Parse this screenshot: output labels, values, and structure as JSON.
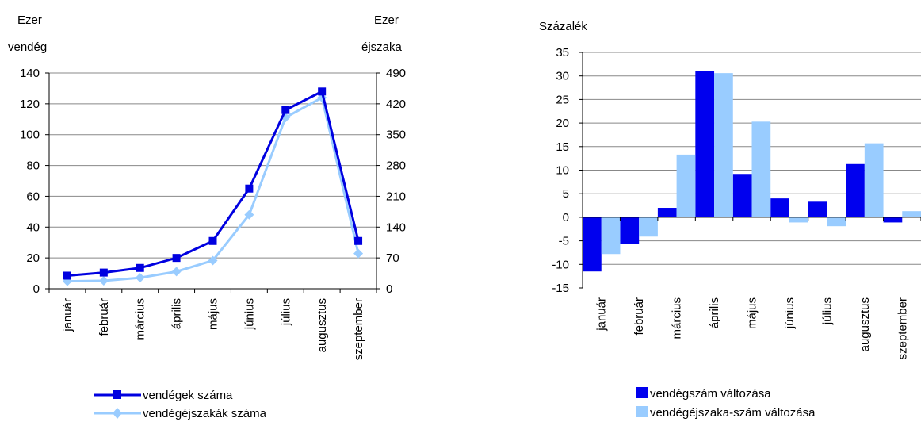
{
  "chart_data": [
    {
      "type": "line",
      "categories": [
        "január",
        "február",
        "március",
        "április",
        "május",
        "június",
        "július",
        "augusztus",
        "szeptember"
      ],
      "left_axis": {
        "label_line1": "Ezer",
        "label_line2": "vendég",
        "ylim": [
          0,
          140
        ],
        "ticks": [
          0,
          20,
          40,
          60,
          80,
          100,
          120,
          140
        ]
      },
      "right_axis": {
        "label_line1": "Ezer",
        "label_line2": "éjszaka",
        "ylim": [
          0,
          490
        ],
        "ticks": [
          0,
          70,
          140,
          210,
          280,
          350,
          420,
          490
        ]
      },
      "series": [
        {
          "name": "vendégek száma",
          "axis": "left",
          "marker": "square",
          "color": "#0000e0",
          "values": [
            8.5,
            10.5,
            13.5,
            20,
            31,
            65,
            116,
            128,
            31
          ]
        },
        {
          "name": "vendégéjszakák száma",
          "axis": "right",
          "marker": "diamond",
          "color": "#99ccff",
          "values": [
            17,
            18,
            25,
            39,
            64,
            168,
            389,
            434,
            80
          ]
        }
      ],
      "grid": true,
      "legend_position": "bottom"
    },
    {
      "type": "bar",
      "categories": [
        "január",
        "február",
        "március",
        "április",
        "május",
        "június",
        "július",
        "augusztus",
        "szeptember"
      ],
      "ylabel": "Százalék",
      "ylim": [
        -15,
        35
      ],
      "ticks": [
        -15,
        -10,
        -5,
        0,
        5,
        10,
        15,
        20,
        25,
        30,
        35
      ],
      "series": [
        {
          "name": "vendégszám változása",
          "color": "#0000ee",
          "values": [
            -11.5,
            -5.7,
            2.0,
            31.0,
            9.2,
            4.0,
            3.3,
            11.3,
            -1.1
          ]
        },
        {
          "name": "vendégéjszaka-szám változása",
          "color": "#99ccff",
          "values": [
            -7.8,
            -4.1,
            13.3,
            30.6,
            20.3,
            -1.1,
            -1.9,
            15.7,
            1.3
          ]
        }
      ],
      "grid": true,
      "legend_position": "bottom"
    }
  ]
}
